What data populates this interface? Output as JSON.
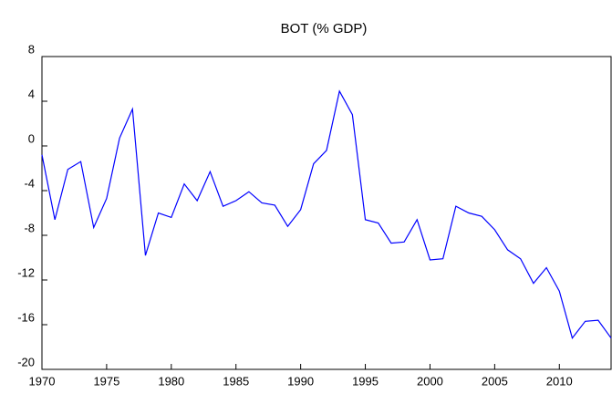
{
  "chart_data": {
    "type": "line",
    "title": "BOT (% GDP)",
    "x": [
      1970,
      1971,
      1972,
      1973,
      1974,
      1975,
      1976,
      1977,
      1978,
      1979,
      1980,
      1981,
      1982,
      1983,
      1984,
      1985,
      1986,
      1987,
      1988,
      1989,
      1990,
      1991,
      1992,
      1993,
      1994,
      1995,
      1996,
      1997,
      1998,
      1999,
      2000,
      2001,
      2002,
      2003,
      2004,
      2005,
      2006,
      2007,
      2008,
      2009,
      2010,
      2011,
      2012,
      2013,
      2014
    ],
    "values": [
      -0.8,
      -6.6,
      -2.1,
      -1.4,
      -7.3,
      -4.7,
      0.7,
      3.3,
      -9.8,
      -6.0,
      -6.4,
      -3.4,
      -4.9,
      -2.3,
      -5.4,
      -4.9,
      -4.1,
      -5.1,
      -5.3,
      -7.2,
      -5.7,
      -1.6,
      -0.4,
      4.9,
      2.8,
      -6.6,
      -6.9,
      -8.7,
      -8.6,
      -6.6,
      -10.2,
      -10.1,
      -5.4,
      -6.0,
      -6.3,
      -7.5,
      -9.3,
      -10.1,
      -12.3,
      -10.9,
      -13.0,
      -17.2,
      -15.7,
      -15.6,
      -17.2
    ],
    "color": "#0000ff",
    "xlim": [
      1970,
      2014
    ],
    "xticks": [
      1970,
      1975,
      1980,
      1985,
      1990,
      1995,
      2000,
      2005,
      2010
    ],
    "ylim": [
      -20,
      8
    ],
    "yticks": [
      -20,
      -16,
      -12,
      -8,
      -4,
      0,
      4,
      8
    ]
  }
}
